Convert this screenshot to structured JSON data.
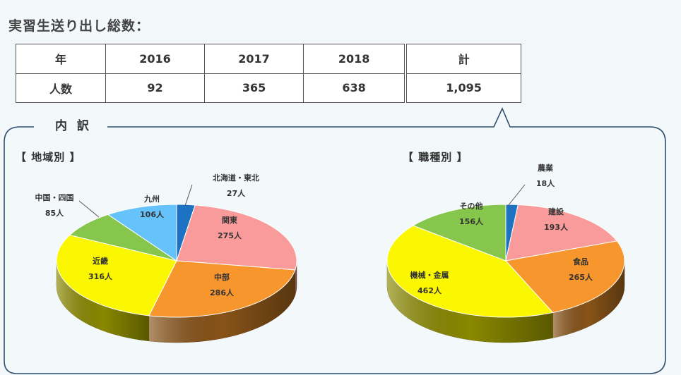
{
  "heading": "実習生送り出し総数：",
  "totals_table": {
    "header": [
      "年",
      "2016",
      "2017",
      "2018",
      "計"
    ],
    "row": [
      "人数",
      "92",
      "365",
      "638",
      "1,095"
    ]
  },
  "breakdown_label": "内 訳",
  "chart_data": [
    {
      "type": "pie",
      "title": "【 地域別 】",
      "categories": [
        "北海道・東北",
        "関東",
        "中部",
        "近畿",
        "中国・四国",
        "九州"
      ],
      "values": [
        27,
        275,
        286,
        316,
        85,
        106
      ],
      "value_labels": [
        "27人",
        "275人",
        "286人",
        "316人",
        "85人",
        "106人"
      ],
      "colors": [
        "#1e72c2",
        "#f99b9b",
        "#f7962c",
        "#faf700",
        "#86c64c",
        "#66c2fa"
      ],
      "start_angle_deg": -90,
      "three_d": true
    },
    {
      "type": "pie",
      "title": "【 職種別 】",
      "categories": [
        "農業",
        "建設",
        "食品",
        "機械・金属",
        "その他"
      ],
      "values": [
        18,
        193,
        265,
        462,
        156
      ],
      "value_labels": [
        "18人",
        "193人",
        "265人",
        "462人",
        "156人"
      ],
      "colors": [
        "#1e72c2",
        "#f99b9b",
        "#f7962c",
        "#faf700",
        "#86c64c"
      ],
      "start_angle_deg": -90,
      "three_d": true
    }
  ]
}
